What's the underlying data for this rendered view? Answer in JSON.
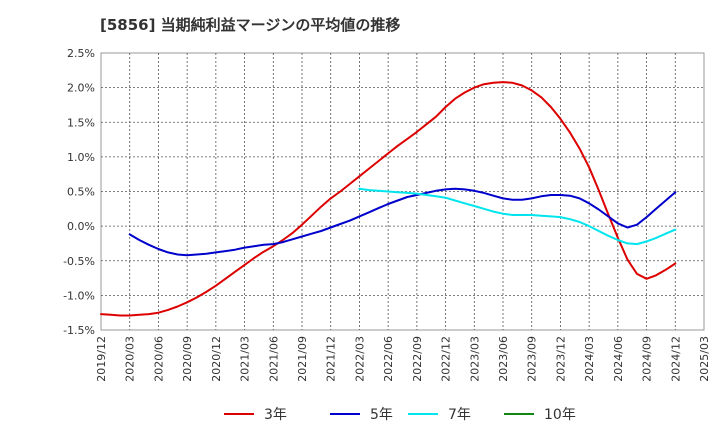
{
  "chart_data": {
    "type": "line",
    "title": "[5856]  当期純利益マージンの平均値の推移",
    "ylim": [
      -1.5,
      2.5
    ],
    "yticks": [
      -1.5,
      -1.0,
      -0.5,
      0.0,
      0.5,
      1.0,
      1.5,
      2.0,
      2.5
    ],
    "ytick_labels": [
      "-1.5%",
      "-1.0%",
      "-0.5%",
      "0.0%",
      "0.5%",
      "1.0%",
      "1.5%",
      "2.0%",
      "2.5%"
    ],
    "xticks": [
      "2019/12",
      "2020/03",
      "2020/06",
      "2020/09",
      "2020/12",
      "2021/03",
      "2021/06",
      "2021/09",
      "2021/12",
      "2022/03",
      "2022/06",
      "2022/09",
      "2022/12",
      "2023/03",
      "2023/06",
      "2023/09",
      "2023/12",
      "2024/03",
      "2024/06",
      "2024/09",
      "2024/12",
      "2025/03"
    ],
    "grid": true,
    "legend_position": "bottom",
    "series": [
      {
        "name": "3年",
        "color": "#dd0000",
        "points": [
          [
            "2019/12",
            -1.27
          ],
          [
            "2020/01",
            -1.28
          ],
          [
            "2020/02",
            -1.29
          ],
          [
            "2020/03",
            -1.29
          ],
          [
            "2020/04",
            -1.28
          ],
          [
            "2020/05",
            -1.27
          ],
          [
            "2020/06",
            -1.25
          ],
          [
            "2020/07",
            -1.21
          ],
          [
            "2020/08",
            -1.16
          ],
          [
            "2020/09",
            -1.1
          ],
          [
            "2020/10",
            -1.03
          ],
          [
            "2020/11",
            -0.95
          ],
          [
            "2020/12",
            -0.86
          ],
          [
            "2021/01",
            -0.76
          ],
          [
            "2021/02",
            -0.66
          ],
          [
            "2021/03",
            -0.56
          ],
          [
            "2021/04",
            -0.46
          ],
          [
            "2021/05",
            -0.37
          ],
          [
            "2021/06",
            -0.29
          ],
          [
            "2021/07",
            -0.2
          ],
          [
            "2021/08",
            -0.1
          ],
          [
            "2021/09",
            0.02
          ],
          [
            "2021/10",
            0.15
          ],
          [
            "2021/11",
            0.28
          ],
          [
            "2021/12",
            0.4
          ],
          [
            "2022/01",
            0.5
          ],
          [
            "2022/02",
            0.61
          ],
          [
            "2022/03",
            0.72
          ],
          [
            "2022/04",
            0.83
          ],
          [
            "2022/05",
            0.94
          ],
          [
            "2022/06",
            1.05
          ],
          [
            "2022/07",
            1.16
          ],
          [
            "2022/08",
            1.26
          ],
          [
            "2022/09",
            1.36
          ],
          [
            "2022/10",
            1.47
          ],
          [
            "2022/11",
            1.58
          ],
          [
            "2022/12",
            1.72
          ],
          [
            "2023/01",
            1.84
          ],
          [
            "2023/02",
            1.93
          ],
          [
            "2023/03",
            2.0
          ],
          [
            "2023/04",
            2.05
          ],
          [
            "2023/05",
            2.07
          ],
          [
            "2023/06",
            2.08
          ],
          [
            "2023/07",
            2.07
          ],
          [
            "2023/08",
            2.03
          ],
          [
            "2023/09",
            1.96
          ],
          [
            "2023/10",
            1.86
          ],
          [
            "2023/11",
            1.72
          ],
          [
            "2023/12",
            1.55
          ],
          [
            "2024/01",
            1.35
          ],
          [
            "2024/02",
            1.12
          ],
          [
            "2024/03",
            0.85
          ],
          [
            "2024/04",
            0.52
          ],
          [
            "2024/05",
            0.17
          ],
          [
            "2024/06",
            -0.17
          ],
          [
            "2024/07",
            -0.48
          ],
          [
            "2024/08",
            -0.69
          ],
          [
            "2024/09",
            -0.76
          ],
          [
            "2024/10",
            -0.71
          ],
          [
            "2024/11",
            -0.63
          ],
          [
            "2024/12",
            -0.54
          ]
        ]
      },
      {
        "name": "5年",
        "color": "#0000cc",
        "points": [
          [
            "2020/03",
            -0.12
          ],
          [
            "2020/04",
            -0.2
          ],
          [
            "2020/05",
            -0.27
          ],
          [
            "2020/06",
            -0.33
          ],
          [
            "2020/07",
            -0.38
          ],
          [
            "2020/08",
            -0.41
          ],
          [
            "2020/09",
            -0.42
          ],
          [
            "2020/10",
            -0.41
          ],
          [
            "2020/11",
            -0.4
          ],
          [
            "2020/12",
            -0.38
          ],
          [
            "2021/01",
            -0.36
          ],
          [
            "2021/02",
            -0.34
          ],
          [
            "2021/03",
            -0.31
          ],
          [
            "2021/04",
            -0.29
          ],
          [
            "2021/05",
            -0.27
          ],
          [
            "2021/06",
            -0.26
          ],
          [
            "2021/07",
            -0.23
          ],
          [
            "2021/08",
            -0.19
          ],
          [
            "2021/09",
            -0.15
          ],
          [
            "2021/10",
            -0.11
          ],
          [
            "2021/11",
            -0.07
          ],
          [
            "2021/12",
            -0.02
          ],
          [
            "2022/01",
            0.03
          ],
          [
            "2022/02",
            0.08
          ],
          [
            "2022/03",
            0.14
          ],
          [
            "2022/04",
            0.2
          ],
          [
            "2022/05",
            0.26
          ],
          [
            "2022/06",
            0.32
          ],
          [
            "2022/07",
            0.37
          ],
          [
            "2022/08",
            0.42
          ],
          [
            "2022/09",
            0.45
          ],
          [
            "2022/10",
            0.48
          ],
          [
            "2022/11",
            0.51
          ],
          [
            "2022/12",
            0.53
          ],
          [
            "2023/01",
            0.54
          ],
          [
            "2023/02",
            0.53
          ],
          [
            "2023/03",
            0.51
          ],
          [
            "2023/04",
            0.48
          ],
          [
            "2023/05",
            0.44
          ],
          [
            "2023/06",
            0.4
          ],
          [
            "2023/07",
            0.38
          ],
          [
            "2023/08",
            0.38
          ],
          [
            "2023/09",
            0.4
          ],
          [
            "2023/10",
            0.43
          ],
          [
            "2023/11",
            0.45
          ],
          [
            "2023/12",
            0.45
          ],
          [
            "2024/01",
            0.44
          ],
          [
            "2024/02",
            0.4
          ],
          [
            "2024/03",
            0.33
          ],
          [
            "2024/04",
            0.24
          ],
          [
            "2024/05",
            0.14
          ],
          [
            "2024/06",
            0.04
          ],
          [
            "2024/07",
            -0.02
          ],
          [
            "2024/08",
            0.02
          ],
          [
            "2024/09",
            0.13
          ],
          [
            "2024/10",
            0.25
          ],
          [
            "2024/11",
            0.37
          ],
          [
            "2024/12",
            0.49
          ]
        ]
      },
      {
        "name": "7年",
        "color": "#00e5ee",
        "points": [
          [
            "2022/03",
            0.54
          ],
          [
            "2022/04",
            0.52
          ],
          [
            "2022/05",
            0.51
          ],
          [
            "2022/06",
            0.5
          ],
          [
            "2022/07",
            0.49
          ],
          [
            "2022/08",
            0.48
          ],
          [
            "2022/09",
            0.47
          ],
          [
            "2022/10",
            0.45
          ],
          [
            "2022/11",
            0.43
          ],
          [
            "2022/12",
            0.41
          ],
          [
            "2023/01",
            0.37
          ],
          [
            "2023/02",
            0.33
          ],
          [
            "2023/03",
            0.29
          ],
          [
            "2023/04",
            0.25
          ],
          [
            "2023/05",
            0.21
          ],
          [
            "2023/06",
            0.18
          ],
          [
            "2023/07",
            0.16
          ],
          [
            "2023/08",
            0.16
          ],
          [
            "2023/09",
            0.16
          ],
          [
            "2023/10",
            0.15
          ],
          [
            "2023/11",
            0.14
          ],
          [
            "2023/12",
            0.13
          ],
          [
            "2024/01",
            0.1
          ],
          [
            "2024/02",
            0.06
          ],
          [
            "2024/03",
            0.0
          ],
          [
            "2024/04",
            -0.07
          ],
          [
            "2024/05",
            -0.14
          ],
          [
            "2024/06",
            -0.2
          ],
          [
            "2024/07",
            -0.25
          ],
          [
            "2024/08",
            -0.26
          ],
          [
            "2024/09",
            -0.22
          ],
          [
            "2024/10",
            -0.17
          ],
          [
            "2024/11",
            -0.11
          ],
          [
            "2024/12",
            -0.05
          ]
        ]
      },
      {
        "name": "10年",
        "color": "#118811",
        "points": []
      }
    ]
  }
}
